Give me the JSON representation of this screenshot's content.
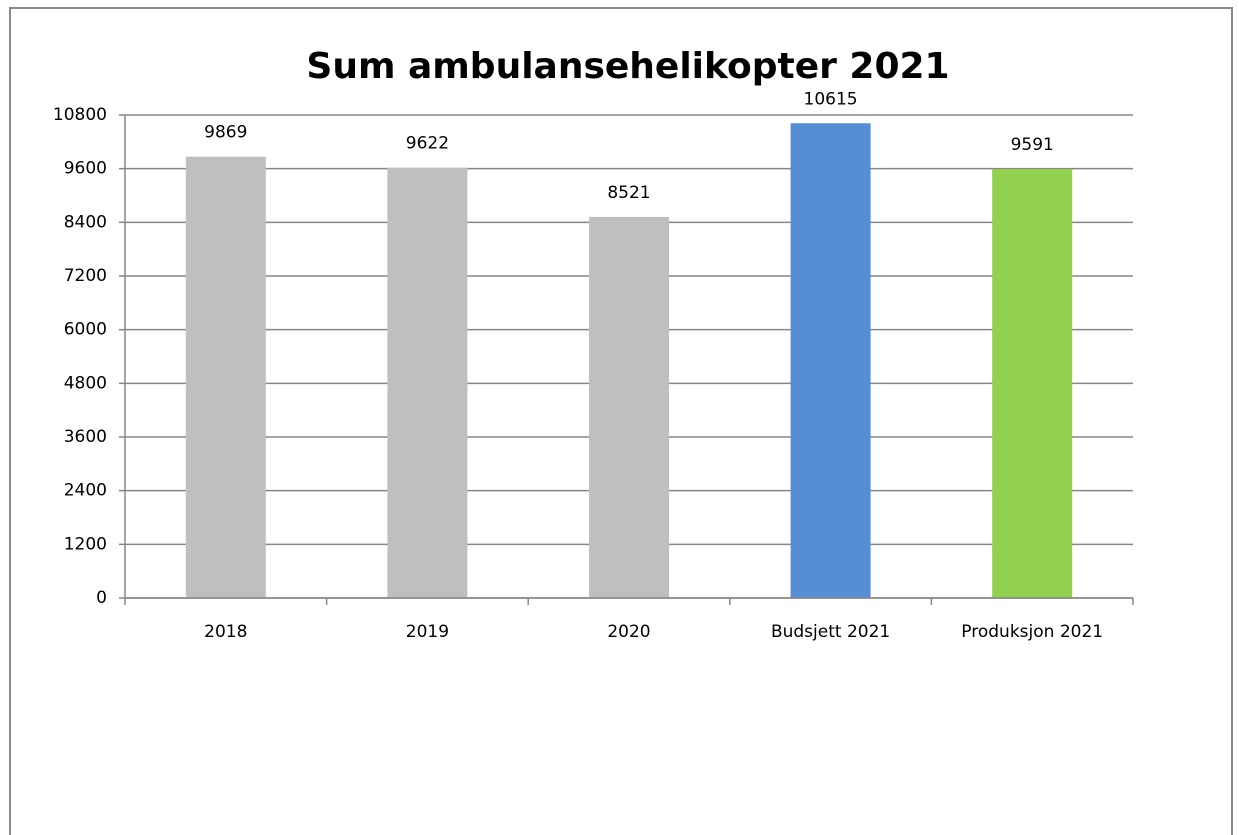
{
  "chart_data": {
    "type": "bar",
    "title": "Sum ambulansehelikopter 2021",
    "categories": [
      "2018",
      "2019",
      "2020",
      "Budsjett 2021",
      "Produksjon 2021"
    ],
    "values": [
      9869,
      9622,
      8521,
      10615,
      9591
    ],
    "colors": [
      "#bfbfbf",
      "#bfbfbf",
      "#bfbfbf",
      "#558ed5",
      "#92d050"
    ],
    "ylim": [
      0,
      10800
    ],
    "yticks": [
      0,
      1200,
      2400,
      3600,
      4800,
      6000,
      7200,
      8400,
      9600,
      10800
    ],
    "grid": true
  }
}
